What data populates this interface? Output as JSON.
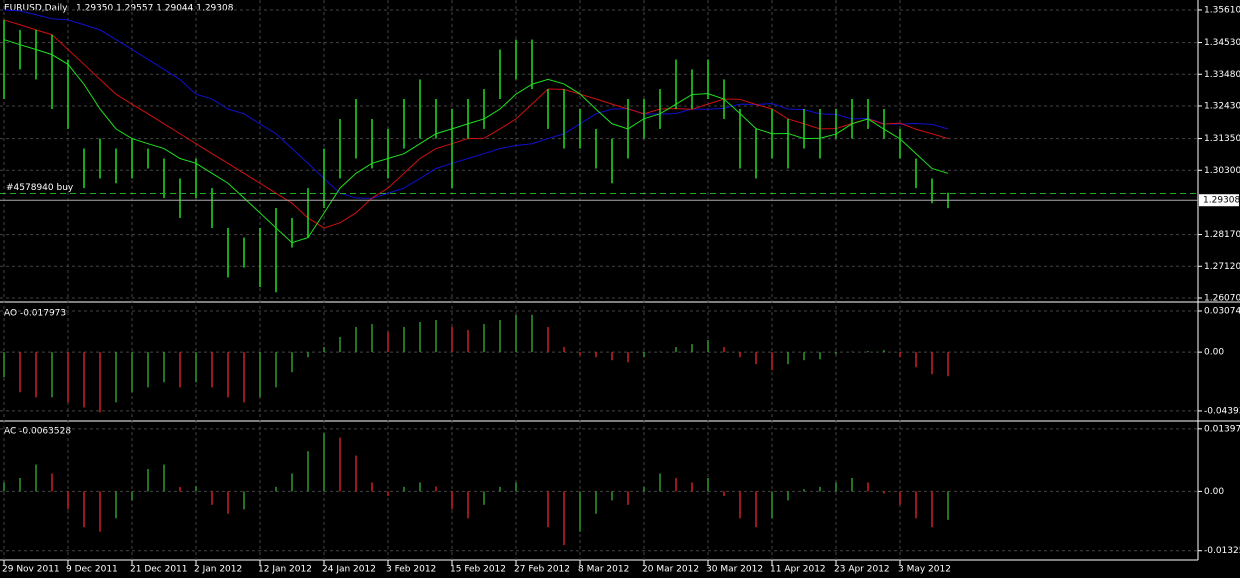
{
  "chart_data": [
    {
      "type": "ohlc",
      "title": "EURUSD,Daily",
      "subtitle": "1.29350 1.29557 1.29044 1.29308",
      "categories": [
        "29 Nov 2011",
        null,
        null,
        null,
        "9 Dec 2011",
        null,
        null,
        null,
        "21 Dec 2011",
        null,
        null,
        null,
        "2 Jan 2012",
        null,
        null,
        null,
        "12 Jan 2012",
        null,
        null,
        null,
        "24 Jan 2012",
        null,
        null,
        null,
        "3 Feb 2012",
        null,
        null,
        null,
        "15 Feb 2012",
        null,
        null,
        null,
        "27 Feb 2012",
        null,
        null,
        null,
        "8 Mar 2012",
        null,
        null,
        null,
        "20 Mar 2012",
        null,
        null,
        null,
        "30 Mar 2012",
        null,
        null,
        null,
        "11 Apr 2012",
        null,
        null,
        null,
        "23 Apr 2012",
        null,
        null,
        null,
        "3 May 2012",
        null,
        null,
        null
      ],
      "high": [
        1.3528,
        1.3495,
        1.3495,
        1.3479,
        1.3397,
        1.3102,
        1.3135,
        1.3102,
        1.3135,
        1.3102,
        1.3069,
        1.3003,
        1.3069,
        1.2971,
        1.2839,
        1.2807,
        1.2839,
        1.2905,
        1.2872,
        1.2971,
        1.3102,
        1.32,
        1.3266,
        1.32,
        1.3167,
        1.3266,
        1.3331,
        1.3266,
        1.3233,
        1.3266,
        1.3299,
        1.343,
        1.3463,
        1.3463,
        1.3299,
        1.3299,
        1.3233,
        1.3167,
        1.3135,
        1.3266,
        1.3266,
        1.3299,
        1.3397,
        1.3364,
        1.3397,
        1.3331,
        1.3233,
        1.3167,
        1.3233,
        1.32,
        1.3233,
        1.3233,
        1.3233,
        1.3266,
        1.3266,
        1.3233,
        1.3167,
        1.3069,
        1.3003,
        1.29557
      ],
      "low": [
        1.3266,
        1.3364,
        1.3331,
        1.3233,
        1.3167,
        1.2971,
        1.3003,
        1.2987,
        1.3003,
        1.3036,
        1.2938,
        1.2872,
        1.2938,
        1.2839,
        1.2675,
        1.2708,
        1.2643,
        1.2626,
        1.2774,
        1.2807,
        1.2905,
        1.3003,
        1.3069,
        1.3036,
        1.3003,
        1.3102,
        1.3135,
        1.3135,
        1.2971,
        1.3135,
        1.3167,
        1.3266,
        1.3331,
        1.3299,
        1.3167,
        1.3102,
        1.3102,
        1.3036,
        1.2987,
        1.3069,
        1.3135,
        1.3167,
        1.3233,
        1.3233,
        1.3266,
        1.32,
        1.3036,
        1.3003,
        1.3069,
        1.3036,
        1.3102,
        1.3069,
        1.3135,
        1.3135,
        1.3167,
        1.3135,
        1.3069,
        1.2971,
        1.2921,
        1.29044
      ],
      "bar_color": "#22dd22",
      "series": [
        {
          "color": "#1010d0",
          "values": [
            1.3561,
            1.3558,
            1.3545,
            1.3532,
            1.3528,
            1.3512,
            1.3495,
            1.3463,
            1.343,
            1.3397,
            1.3364,
            1.3331,
            1.3282,
            1.3266,
            1.3233,
            1.3217,
            1.3184,
            1.3151,
            1.3102,
            1.3053,
            1.3003,
            1.2954,
            1.2938,
            1.2937,
            1.2954,
            1.2971,
            1.3003,
            1.3036,
            1.3053,
            1.3069,
            1.3085,
            1.3102,
            1.3112,
            1.3118,
            1.3135,
            1.3151,
            1.3184,
            1.3217,
            1.3233,
            1.3234,
            1.3217,
            1.3216,
            1.3218,
            1.3233,
            1.3232,
            1.3235,
            1.3249,
            1.3248,
            1.3251,
            1.3233,
            1.3231,
            1.3217,
            1.3215,
            1.32,
            1.3202,
            1.3184,
            1.3183,
            1.3185,
            1.3182,
            1.3167
          ]
        },
        {
          "color": "#d01010",
          "values": [
            1.3528,
            1.3512,
            1.3495,
            1.3479,
            1.343,
            1.3381,
            1.3331,
            1.3282,
            1.3249,
            1.3217,
            1.3184,
            1.3151,
            1.3118,
            1.3085,
            1.3053,
            1.302,
            1.2987,
            1.2954,
            1.2921,
            1.2872,
            1.2839,
            1.2856,
            1.2889,
            1.2938,
            1.2971,
            1.302,
            1.3069,
            1.3102,
            1.3118,
            1.3135,
            1.3136,
            1.3167,
            1.32,
            1.3249,
            1.3299,
            1.3298,
            1.3282,
            1.3266,
            1.3249,
            1.3233,
            1.3217,
            1.3233,
            1.3234,
            1.3232,
            1.3249,
            1.3266,
            1.3265,
            1.3248,
            1.3233,
            1.32,
            1.3184,
            1.3167,
            1.3168,
            1.3185,
            1.32,
            1.3183,
            1.3186,
            1.3166,
            1.3151,
            1.3135
          ]
        },
        {
          "color": "#20e020",
          "values": [
            1.3463,
            1.3446,
            1.343,
            1.3413,
            1.3381,
            1.3315,
            1.3233,
            1.3167,
            1.3135,
            1.3118,
            1.3102,
            1.3069,
            1.3053,
            1.302,
            1.2987,
            1.2938,
            1.2889,
            1.2839,
            1.279,
            1.2807,
            1.2888,
            1.2971,
            1.302,
            1.3053,
            1.3069,
            1.3085,
            1.3118,
            1.3151,
            1.3167,
            1.3184,
            1.32,
            1.3233,
            1.3282,
            1.3315,
            1.3331,
            1.3316,
            1.3283,
            1.3232,
            1.3184,
            1.3167,
            1.3201,
            1.3217,
            1.3249,
            1.3281,
            1.3284,
            1.3266,
            1.3218,
            1.3168,
            1.3151,
            1.3152,
            1.3135,
            1.3136,
            1.315,
            1.3184,
            1.32,
            1.3166,
            1.3134,
            1.3085,
            1.3036,
            1.302
          ]
        }
      ],
      "ylim": [
        1.2597,
        1.3594
      ],
      "yticks": [
        {
          "value": 1.3561,
          "label": "1.35610"
        },
        {
          "value": 1.3453,
          "label": "1.34530"
        },
        {
          "value": 1.3348,
          "label": "1.33480"
        },
        {
          "value": 1.3243,
          "label": "1.32430"
        },
        {
          "value": 1.3135,
          "label": "1.31350"
        },
        {
          "value": 1.303,
          "label": "1.30300"
        },
        {
          "value": 1.2817,
          "label": "1.28170"
        },
        {
          "value": 1.2712,
          "label": "1.27120"
        },
        {
          "value": 1.2607,
          "label": "1.26070"
        }
      ],
      "current_price": 1.29308,
      "order": {
        "label": "#4578940 buy",
        "value": 1.2953
      },
      "grid": true
    },
    {
      "type": "histogram",
      "title": "AO -0.017973",
      "up_color": "#2e9a2e",
      "down_color": "#d02020",
      "values": [
        -0.0188,
        -0.03,
        -0.0338,
        -0.0337,
        -0.0375,
        -0.0413,
        -0.045,
        -0.0375,
        -0.03,
        -0.0263,
        -0.0225,
        -0.0263,
        -0.0225,
        -0.0263,
        -0.0338,
        -0.0375,
        -0.0338,
        -0.0263,
        -0.015,
        -0.0038,
        0.0038,
        0.0113,
        0.0188,
        0.021,
        0.015,
        0.0188,
        0.0225,
        0.024,
        0.0188,
        0.0165,
        0.021,
        0.024,
        0.0278,
        0.0279,
        0.0188,
        0.0038,
        -0.0023,
        -0.0038,
        -0.006,
        -0.0075,
        -0.0038,
        0.0004,
        0.0038,
        0.006,
        0.009,
        0.0038,
        -0.0038,
        -0.009,
        -0.0135,
        -0.009,
        -0.006,
        -0.0053,
        -0.0015,
        0.0004,
        0.0008,
        0.0015,
        -0.0038,
        -0.0113,
        -0.0165,
        -0.017973
      ],
      "ylim": [
        -0.0507,
        0.0367
      ],
      "yticks": [
        0.030745,
        {
          "value": 0,
          "label": "0.00"
        },
        -0.04393
      ]
    },
    {
      "type": "histogram",
      "title": "AC -0.0063528",
      "up_color": "#2e9a2e",
      "down_color": "#d02020",
      "values": [
        0.002,
        0.003,
        0.006,
        0.004,
        -0.004,
        -0.008,
        -0.009,
        -0.006,
        -0.002,
        0.005,
        0.006,
        0.001,
        0.0012,
        -0.003,
        -0.005,
        -0.004,
        0.0,
        0.001,
        0.004,
        0.009,
        0.013,
        0.012,
        0.008,
        0.002,
        -0.001,
        0.001,
        0.002,
        0.0011,
        -0.004,
        -0.006,
        -0.003,
        0.001,
        0.002,
        0.0,
        -0.008,
        -0.012,
        -0.009,
        -0.005,
        -0.002,
        -0.003,
        0.001,
        0.004,
        0.003,
        0.002,
        0.003,
        -0.001,
        -0.006,
        -0.008,
        -0.006,
        -0.002,
        0.0005,
        0.001,
        0.002,
        0.003,
        0.002,
        -0.0005,
        -0.003,
        -0.006,
        -0.008,
        -0.0063528
      ],
      "ylim": [
        -0.0151,
        0.0155
      ],
      "yticks": [
        0.013975,
        {
          "value": 0,
          "label": "0.00"
        },
        -0.01325
      ]
    }
  ]
}
